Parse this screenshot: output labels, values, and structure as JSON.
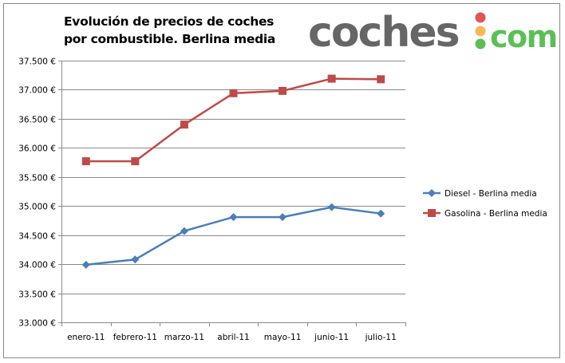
{
  "chart_data": {
    "type": "line",
    "title_line1": "Evolución de precios de coches",
    "title_line2": "por combustible. Berlina media",
    "categories": [
      "enero-11",
      "febrero-11",
      "marzo-11",
      "abril-11",
      "mayo-11",
      "junio-11",
      "julio-11"
    ],
    "ylim": [
      33000,
      37500
    ],
    "yticks": [
      33000,
      33500,
      34000,
      34500,
      35000,
      35500,
      36000,
      36500,
      37000,
      37500
    ],
    "ytick_labels": [
      "33.000 €",
      "33.500 €",
      "34.000 €",
      "34.500 €",
      "35.000 €",
      "35.500 €",
      "36.000 €",
      "36.500 €",
      "37.000 €",
      "37.500 €"
    ],
    "grid": true,
    "legend_placement": "right",
    "series": [
      {
        "name": "Diesel - Berlina media",
        "color": "#4a7ebb",
        "marker": "diamond",
        "values": [
          33990,
          34080,
          34570,
          34810,
          34810,
          34980,
          34870
        ]
      },
      {
        "name": "Gasolina - Berlina media",
        "color": "#be4b48",
        "marker": "square",
        "values": [
          35770,
          35770,
          36400,
          36940,
          36980,
          37190,
          37180
        ]
      }
    ]
  },
  "logo": {
    "text": "coches.com",
    "word": "coches",
    "suffix": "com",
    "colors": {
      "gray": "#666666",
      "green": "#5cbf55",
      "red": "#e05555",
      "yellow": "#f5b95a"
    }
  }
}
